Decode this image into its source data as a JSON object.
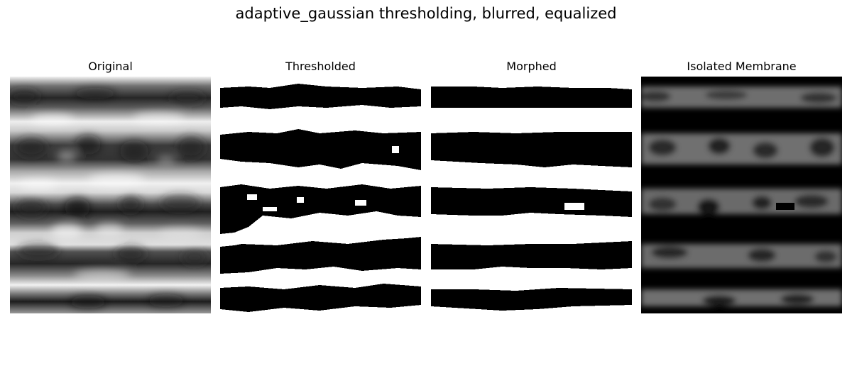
{
  "figure": {
    "title": "adaptive_gaussian thresholding, blurred, equalized"
  },
  "panels": [
    {
      "title": "Original"
    },
    {
      "title": "Thresholded"
    },
    {
      "title": "Morphed"
    },
    {
      "title": "Isolated Membrane"
    }
  ]
}
